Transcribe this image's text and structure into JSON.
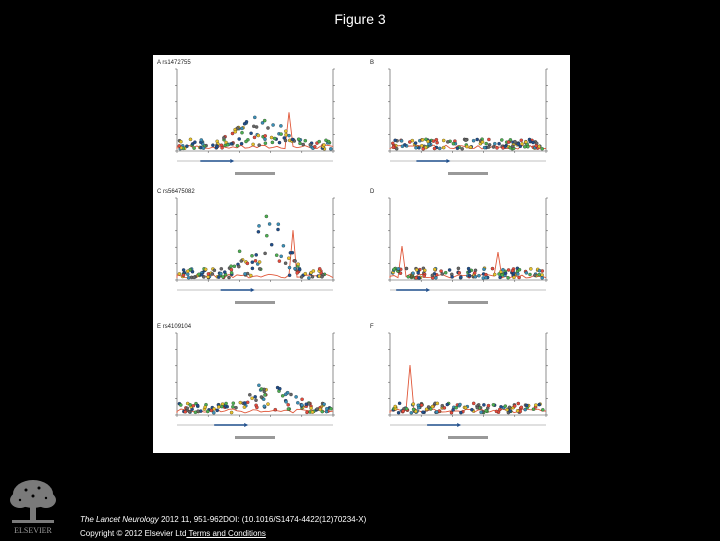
{
  "header": {
    "title": "Figure 3"
  },
  "panels": [
    {
      "letter": "A",
      "label": "rs1472755"
    },
    {
      "letter": "B",
      "label": ""
    },
    {
      "letter": "C",
      "label": "rs56475082"
    },
    {
      "letter": "D",
      "label": ""
    },
    {
      "letter": "E",
      "label": "rs4109104"
    },
    {
      "letter": "F",
      "label": ""
    }
  ],
  "footer": {
    "journal": "The Lancet Neurology",
    "citation_rest": " 2012 11, 951-962DOI: (10.1016/S1474-4422(12)70234-X)",
    "copyright": "Copyright © 2012 Elsevier Ltd",
    "terms_link": " Terms and Conditions",
    "logo_text": "ELSEVIER"
  },
  "colors": {
    "background": "#000000",
    "figure_bg": "#ffffff",
    "recombination_line": "#e0583a",
    "points": [
      "#1f4e8c",
      "#3a8fb7",
      "#4caf50",
      "#e8c22a",
      "#e64a3b",
      "#666666"
    ]
  }
}
